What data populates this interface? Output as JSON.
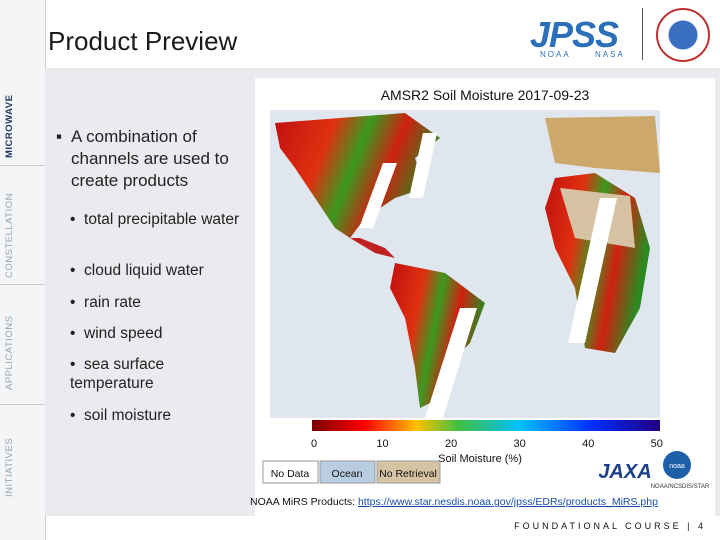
{
  "header": {
    "title": "Product Preview",
    "logo": "JPSS",
    "logo_sub": [
      "NOAA",
      "NASA"
    ]
  },
  "sidebar": [
    "MICROWAVE",
    "CONSTELLATION",
    "APPLICATIONS",
    "INITIATIVES"
  ],
  "content": {
    "lead": "A combination of channels are used to create products",
    "bullets": [
      "total precipitable water",
      "cloud liquid water",
      "rain rate",
      "wind speed",
      "sea surface temperature",
      "soil moisture"
    ]
  },
  "figure": {
    "title": "AMSR2 Soil Moisture 2017-09-23",
    "colorbar_ticks": [
      "0",
      "10",
      "20",
      "30",
      "40",
      "50"
    ],
    "colorbar_label": "Soil Moisture (%)",
    "legend": [
      "No Data",
      "Ocean",
      "No Retrieval"
    ],
    "logos": [
      "JAXA",
      "noaa"
    ],
    "credit": "NOAA/NCSDIS/STAR"
  },
  "footer": {
    "source": "NOAA MiRS Products:",
    "link": "https://www.star.nesdis.noaa.gov/jpss/EDRs/products_MiRS.php",
    "course": "FOUNDATIONAL COURSE | 4"
  }
}
